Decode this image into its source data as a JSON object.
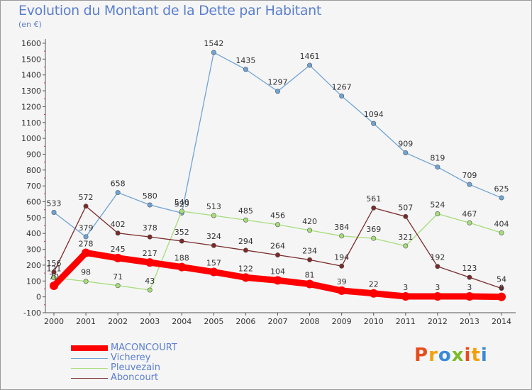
{
  "header": {
    "title": "Evolution du Montant de la Dette par Habitant",
    "unit": "(en €)"
  },
  "logo": {
    "text": "Proxiti",
    "colors": [
      "#e84c1c",
      "#f2a10c",
      "#3a8ad6",
      "#7dbb2a",
      "#e84c1c",
      "#f2a10c",
      "#3a8ad6"
    ]
  },
  "chart_data": {
    "type": "line",
    "title": "Evolution du Montant de la Dette par Habitant",
    "ylabel": "(en €)",
    "xlabel": "",
    "x": [
      "2000",
      "2001",
      "2002",
      "2003",
      "2004",
      "2005",
      "2006",
      "2007",
      "2008",
      "2009",
      "2010",
      "2011",
      "2012",
      "2013",
      "2014"
    ],
    "ylim": [
      -100,
      1600
    ],
    "yticks": [
      -100,
      0,
      100,
      200,
      300,
      400,
      500,
      600,
      700,
      800,
      900,
      1000,
      1100,
      1200,
      1300,
      1400,
      1500,
      1600
    ],
    "grid": false,
    "legend_position": "bottom-left",
    "series": [
      {
        "name": "Vicherey",
        "color": "#6fa3d6",
        "x": [
          "2000",
          "2001",
          "2002",
          "2003",
          "2004",
          "2005",
          "2006",
          "2007",
          "2008",
          "2009",
          "2010",
          "2011",
          "2012",
          "2013",
          "2014"
        ],
        "values": [
          533,
          379,
          658,
          580,
          529,
          1542,
          1435,
          1297,
          1461,
          1267,
          1094,
          909,
          819,
          709,
          625
        ]
      },
      {
        "name": "Pleuvezain",
        "color": "#a6dd7a",
        "x": [
          "2000",
          "2001",
          "2002",
          "2003",
          "2004",
          "2005",
          "2006",
          "2007",
          "2008",
          "2009",
          "2010",
          "2011",
          "2012",
          "2013",
          "2014"
        ],
        "values": [
          121,
          98,
          71,
          43,
          540,
          513,
          485,
          456,
          420,
          384,
          369,
          321,
          524,
          467,
          404
        ]
      },
      {
        "name": "Aboncourt",
        "color": "#7a2a2a",
        "x": [
          "2000",
          "2001",
          "2002",
          "2003",
          "2004",
          "2005",
          "2006",
          "2007",
          "2008",
          "2009",
          "2010",
          "2011",
          "2012",
          "2013",
          "2014"
        ],
        "values": [
          156,
          572,
          402,
          378,
          352,
          324,
          294,
          264,
          234,
          194,
          561,
          507,
          192,
          123,
          54
        ]
      },
      {
        "name": "MACONCOURT",
        "color": "#ff0000",
        "thick": true,
        "x": [
          "2000",
          "2001",
          "2002",
          "2003",
          "2004",
          "2005",
          "2006",
          "2007",
          "2008",
          "2009",
          "2010",
          "2011",
          "2012",
          "2013",
          "2014"
        ],
        "values": [
          70,
          278,
          245,
          217,
          188,
          157,
          122,
          104,
          81,
          39,
          22,
          3,
          3,
          3,
          0
        ]
      }
    ]
  },
  "legend": {
    "items": [
      {
        "label": "MACONCOURT",
        "color": "#ff0000",
        "thick": true
      },
      {
        "label": "Vicherey",
        "color": "#6fa3d6",
        "thick": false
      },
      {
        "label": "Pleuvezain",
        "color": "#a6dd7a",
        "thick": false
      },
      {
        "label": "Aboncourt",
        "color": "#7a2a2a",
        "thick": false
      }
    ]
  }
}
